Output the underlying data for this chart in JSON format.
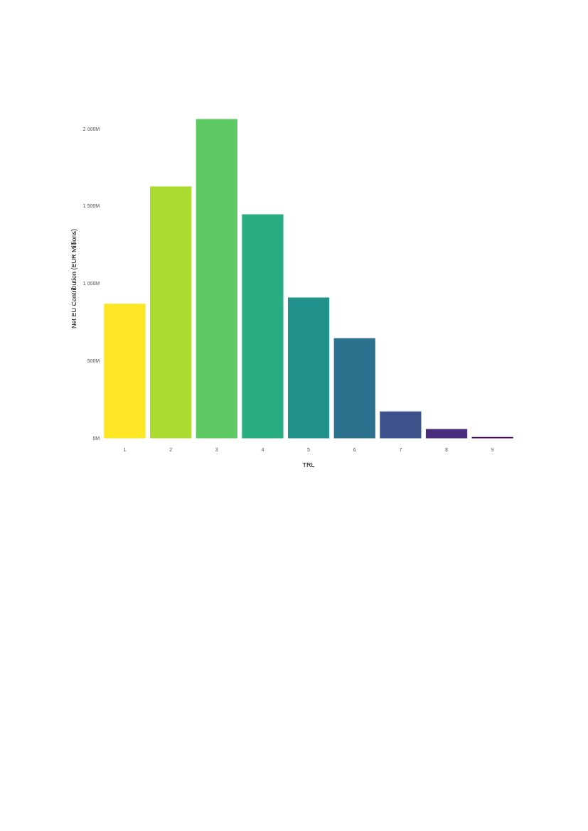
{
  "chart_data": {
    "type": "bar",
    "xlabel": "TRL",
    "ylabel": "Net EU Contribution (EUR Millions)",
    "categories": [
      "1",
      "2",
      "3",
      "4",
      "5",
      "6",
      "7",
      "8",
      "9"
    ],
    "values": [
      872,
      1630,
      2067,
      1449,
      912,
      649,
      175,
      61,
      10
    ],
    "colors": [
      "#fde725",
      "#addc30",
      "#5ec962",
      "#28ae80",
      "#21918c",
      "#2c728e",
      "#3b528b",
      "#472d7b",
      "#440154"
    ],
    "ylim": [
      0,
      2067
    ],
    "yticks": [
      {
        "value": 0,
        "label": "0M"
      },
      {
        "value": 500,
        "label": "500M"
      },
      {
        "value": 1000,
        "label": "1 000M"
      },
      {
        "value": 1500,
        "label": "1 500M"
      },
      {
        "value": 2000,
        "label": "2 000M"
      }
    ],
    "grid": false,
    "legend": false
  }
}
